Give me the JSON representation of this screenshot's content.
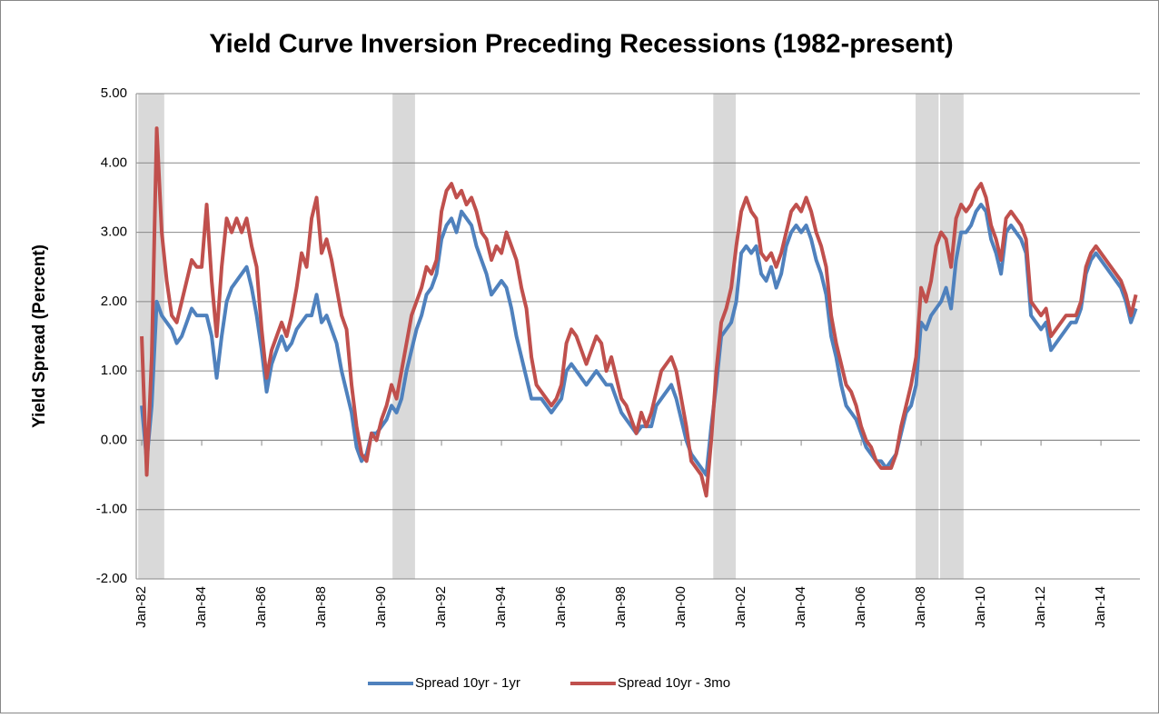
{
  "chart_data": {
    "type": "line",
    "title": "Yield Curve Inversion Preceding Recessions (1982-present)",
    "ylabel": "Yield Spread (Percent)",
    "categories": [
      "Jan-82",
      null,
      null,
      null,
      null,
      null,
      null,
      null,
      null,
      null,
      null,
      null,
      "Jan-84",
      null,
      null,
      null,
      null,
      null,
      null,
      null,
      null,
      null,
      null,
      null,
      "Jan-86",
      null,
      null,
      null,
      null,
      null,
      null,
      null,
      null,
      null,
      null,
      null,
      "Jan-88",
      null,
      null,
      null,
      null,
      null,
      null,
      null,
      null,
      null,
      null,
      null,
      "Jan-90",
      null,
      null,
      null,
      null,
      null,
      null,
      null,
      null,
      null,
      null,
      null,
      "Jan-92",
      null,
      null,
      null,
      null,
      null,
      null,
      null,
      null,
      null,
      null,
      null,
      "Jan-94",
      null,
      null,
      null,
      null,
      null,
      null,
      null,
      null,
      null,
      null,
      null,
      "Jan-96",
      null,
      null,
      null,
      null,
      null,
      null,
      null,
      null,
      null,
      null,
      null,
      "Jan-98",
      null,
      null,
      null,
      null,
      null,
      null,
      null,
      null,
      null,
      null,
      null,
      "Jan-00",
      null,
      null,
      null,
      null,
      null,
      null,
      null,
      null,
      null,
      null,
      null,
      "Jan-02",
      null,
      null,
      null,
      null,
      null,
      null,
      null,
      null,
      null,
      null,
      null,
      "Jan-04",
      null,
      null,
      null,
      null,
      null,
      null,
      null,
      null,
      null,
      null,
      null,
      "Jan-06",
      null,
      null,
      null,
      null,
      null,
      null,
      null,
      null,
      null,
      null,
      null,
      "Jan-08",
      null,
      null,
      null,
      null,
      null,
      null,
      null,
      null,
      null,
      null,
      null,
      "Jan-10",
      null,
      null,
      null,
      null,
      null,
      null,
      null,
      null,
      null,
      null,
      null,
      "Jan-12",
      null,
      null,
      null,
      null,
      null,
      null,
      null,
      null,
      null,
      null,
      null,
      "Jan-14",
      null,
      null,
      null,
      null,
      null,
      null,
      null
    ],
    "series": [
      {
        "name": "Spread 10yr - 1yr",
        "color": "#4f81bd",
        "values": [
          0.5,
          -0.3,
          0.5,
          2.0,
          1.8,
          1.7,
          1.6,
          1.4,
          1.5,
          1.7,
          1.9,
          1.8,
          1.8,
          1.8,
          1.5,
          0.9,
          1.5,
          2.0,
          2.2,
          2.3,
          2.4,
          2.5,
          2.2,
          1.8,
          1.3,
          0.7,
          1.1,
          1.3,
          1.5,
          1.3,
          1.4,
          1.6,
          1.7,
          1.8,
          1.8,
          2.1,
          1.7,
          1.8,
          1.6,
          1.4,
          1.0,
          0.7,
          0.4,
          -0.1,
          -0.3,
          -0.2,
          0.1,
          0.1,
          0.2,
          0.3,
          0.5,
          0.4,
          0.6,
          1.0,
          1.3,
          1.6,
          1.8,
          2.1,
          2.2,
          2.4,
          2.9,
          3.1,
          3.2,
          3.0,
          3.3,
          3.2,
          3.1,
          2.8,
          2.6,
          2.4,
          2.1,
          2.2,
          2.3,
          2.2,
          1.9,
          1.5,
          1.2,
          0.9,
          0.6,
          0.6,
          0.6,
          0.5,
          0.4,
          0.5,
          0.6,
          1.0,
          1.1,
          1.0,
          0.9,
          0.8,
          0.9,
          1.0,
          0.9,
          0.8,
          0.8,
          0.6,
          0.4,
          0.3,
          0.2,
          0.1,
          0.2,
          0.2,
          0.2,
          0.5,
          0.6,
          0.7,
          0.8,
          0.6,
          0.3,
          0.0,
          -0.2,
          -0.3,
          -0.4,
          -0.5,
          0.2,
          0.8,
          1.5,
          1.6,
          1.7,
          2.0,
          2.7,
          2.8,
          2.7,
          2.8,
          2.4,
          2.3,
          2.5,
          2.2,
          2.4,
          2.8,
          3.0,
          3.1,
          3.0,
          3.1,
          2.9,
          2.6,
          2.4,
          2.1,
          1.5,
          1.2,
          0.8,
          0.5,
          0.4,
          0.3,
          0.1,
          -0.1,
          -0.2,
          -0.3,
          -0.3,
          -0.4,
          -0.3,
          -0.2,
          0.1,
          0.4,
          0.5,
          0.8,
          1.7,
          1.6,
          1.8,
          1.9,
          2.0,
          2.2,
          1.9,
          2.6,
          3.0,
          3.0,
          3.1,
          3.3,
          3.4,
          3.3,
          2.9,
          2.7,
          2.4,
          3.0,
          3.1,
          3.0,
          2.9,
          2.7,
          1.8,
          1.7,
          1.6,
          1.7,
          1.3,
          1.4,
          1.5,
          1.6,
          1.7,
          1.7,
          1.9,
          2.4,
          2.6,
          2.7,
          2.6,
          2.5,
          2.4,
          2.3,
          2.2,
          2.0,
          1.7,
          1.9
        ]
      },
      {
        "name": "Spread 10yr - 3mo",
        "color": "#c0504d",
        "values": [
          1.5,
          -0.5,
          1.2,
          4.5,
          3.0,
          2.3,
          1.8,
          1.7,
          2.0,
          2.3,
          2.6,
          2.5,
          2.5,
          3.4,
          2.3,
          1.5,
          2.5,
          3.2,
          3.0,
          3.2,
          3.0,
          3.2,
          2.8,
          2.5,
          1.6,
          0.9,
          1.3,
          1.5,
          1.7,
          1.5,
          1.8,
          2.2,
          2.7,
          2.5,
          3.2,
          3.5,
          2.7,
          2.9,
          2.6,
          2.2,
          1.8,
          1.6,
          0.8,
          0.2,
          -0.2,
          -0.3,
          0.1,
          0.0,
          0.3,
          0.5,
          0.8,
          0.6,
          1.0,
          1.4,
          1.8,
          2.0,
          2.2,
          2.5,
          2.4,
          2.6,
          3.3,
          3.6,
          3.7,
          3.5,
          3.6,
          3.4,
          3.5,
          3.3,
          3.0,
          2.9,
          2.6,
          2.8,
          2.7,
          3.0,
          2.8,
          2.6,
          2.2,
          1.9,
          1.2,
          0.8,
          0.7,
          0.6,
          0.5,
          0.6,
          0.8,
          1.4,
          1.6,
          1.5,
          1.3,
          1.1,
          1.3,
          1.5,
          1.4,
          1.0,
          1.2,
          0.9,
          0.6,
          0.5,
          0.3,
          0.1,
          0.4,
          0.2,
          0.4,
          0.7,
          1.0,
          1.1,
          1.2,
          1.0,
          0.6,
          0.2,
          -0.3,
          -0.4,
          -0.5,
          -0.8,
          0.0,
          1.0,
          1.7,
          1.9,
          2.2,
          2.8,
          3.3,
          3.5,
          3.3,
          3.2,
          2.7,
          2.6,
          2.7,
          2.5,
          2.7,
          3.0,
          3.3,
          3.4,
          3.3,
          3.5,
          3.3,
          3.0,
          2.8,
          2.5,
          1.8,
          1.4,
          1.1,
          0.8,
          0.7,
          0.5,
          0.2,
          0.0,
          -0.1,
          -0.3,
          -0.4,
          -0.4,
          -0.4,
          -0.2,
          0.2,
          0.5,
          0.8,
          1.2,
          2.2,
          2.0,
          2.3,
          2.8,
          3.0,
          2.9,
          2.5,
          3.2,
          3.4,
          3.3,
          3.4,
          3.6,
          3.7,
          3.5,
          3.1,
          2.9,
          2.6,
          3.2,
          3.3,
          3.2,
          3.1,
          2.9,
          2.0,
          1.9,
          1.8,
          1.9,
          1.5,
          1.6,
          1.7,
          1.8,
          1.8,
          1.8,
          2.0,
          2.5,
          2.7,
          2.8,
          2.7,
          2.6,
          2.5,
          2.4,
          2.3,
          2.1,
          1.8,
          2.1
        ]
      }
    ],
    "shaded_periods": [
      [
        -0.7,
        4.5
      ],
      [
        50.2,
        54.7
      ],
      [
        114.4,
        118.9
      ],
      [
        154.9,
        159.5
      ],
      [
        159.8,
        164.5
      ]
    ],
    "shade_color": "#d9d9d9",
    "xlim": [
      -1.1,
      199.8
    ],
    "ylim": [
      -2,
      5
    ],
    "yticks": [
      {
        "value": -2,
        "label": "-2.00"
      },
      {
        "value": -1,
        "label": "-1.00"
      },
      {
        "value": 0,
        "label": "0.00"
      },
      {
        "value": 1,
        "label": "1.00"
      },
      {
        "value": 2,
        "label": "2.00"
      },
      {
        "value": 3,
        "label": "3.00"
      },
      {
        "value": 4,
        "label": "4.00"
      },
      {
        "value": 5,
        "label": "5.00"
      }
    ],
    "grid": true,
    "legend": "bottom"
  }
}
